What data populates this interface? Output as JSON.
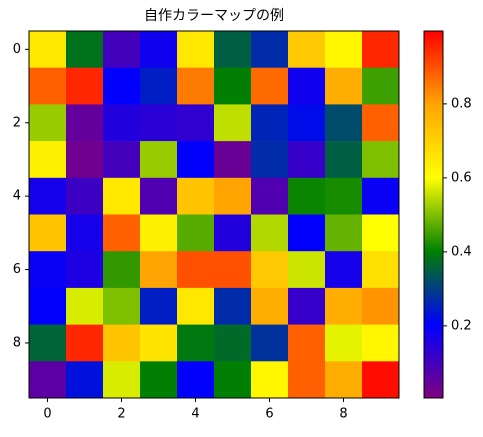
{
  "chart_data": {
    "type": "heatmap",
    "title": "自作カラーマップの例",
    "values": [
      [
        0.65,
        0.38,
        0.1,
        0.18,
        0.65,
        0.35,
        0.27,
        0.72,
        0.62,
        0.95
      ],
      [
        0.88,
        0.95,
        0.2,
        0.25,
        0.85,
        0.4,
        0.87,
        0.18,
        0.78,
        0.45
      ],
      [
        0.52,
        0.05,
        0.15,
        0.14,
        0.13,
        0.55,
        0.26,
        0.22,
        0.32,
        0.88
      ],
      [
        0.63,
        0.03,
        0.1,
        0.52,
        0.2,
        0.04,
        0.27,
        0.12,
        0.35,
        0.5
      ],
      [
        0.17,
        0.11,
        0.65,
        0.08,
        0.73,
        0.8,
        0.08,
        0.41,
        0.42,
        0.19
      ],
      [
        0.73,
        0.17,
        0.88,
        0.63,
        0.47,
        0.15,
        0.54,
        0.2,
        0.48,
        0.6
      ],
      [
        0.19,
        0.16,
        0.44,
        0.8,
        0.9,
        0.9,
        0.72,
        0.56,
        0.17,
        0.67
      ],
      [
        0.2,
        0.57,
        0.5,
        0.25,
        0.65,
        0.27,
        0.78,
        0.12,
        0.78,
        0.82
      ],
      [
        0.36,
        0.95,
        0.73,
        0.66,
        0.39,
        0.37,
        0.28,
        0.88,
        0.58,
        0.62
      ],
      [
        0.06,
        0.23,
        0.57,
        0.4,
        0.2,
        0.4,
        0.62,
        0.88,
        0.78,
        0.98
      ]
    ],
    "colormap": [
      "#800080",
      "#0000ff",
      "#008000",
      "#ffff00",
      "#ffa500",
      "#ff0000"
    ],
    "clim": [
      0.005,
      0.997
    ],
    "xlim": [
      -0.5,
      9.5
    ],
    "ylim": [
      9.5,
      -0.5
    ],
    "xticks": [
      0,
      2,
      4,
      6,
      8
    ],
    "yticks": [
      0,
      2,
      4,
      6,
      8
    ],
    "colorbar_ticks": [
      0.2,
      0.4,
      0.6,
      0.8
    ]
  }
}
